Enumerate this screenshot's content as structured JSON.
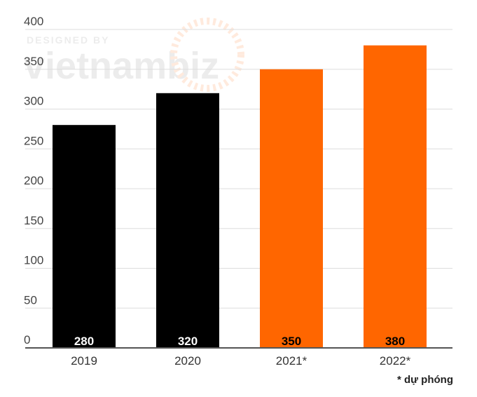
{
  "chart_data": {
    "type": "bar",
    "categories": [
      "2019",
      "2020",
      "2021*",
      "2022*"
    ],
    "values": [
      280,
      320,
      350,
      380
    ],
    "value_labels": [
      "280",
      "320",
      "350",
      "380"
    ],
    "bar_colors": [
      "#000000",
      "#000000",
      "#ff6600",
      "#ff6600"
    ],
    "value_label_colors": [
      "#ffffff",
      "#ffffff",
      "#000000",
      "#000000"
    ],
    "ylim": [
      0,
      400
    ],
    "y_ticks": [
      0,
      50,
      100,
      150,
      200,
      250,
      300,
      350,
      400
    ],
    "grid": true,
    "title": "",
    "xlabel": "",
    "ylabel": ""
  },
  "footnote": "* dự phóng",
  "watermark": {
    "top": "DESIGNED BY",
    "brand": "vietnambiz"
  },
  "colors": {
    "grid": "#dddddd",
    "axis": "#555555",
    "projected": "#ff6600",
    "actual": "#000000"
  }
}
